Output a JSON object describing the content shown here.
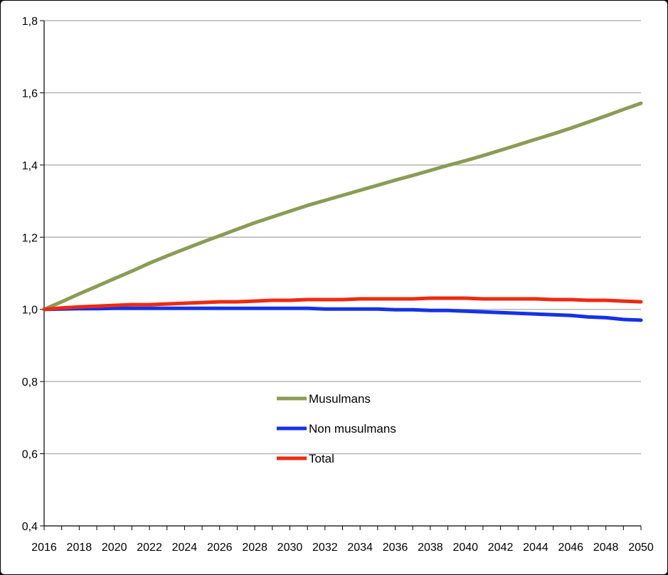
{
  "chart_data": {
    "type": "line",
    "title": "",
    "xlabel": "",
    "ylabel": "",
    "xlim": [
      2016,
      2050
    ],
    "ylim": [
      0.4,
      1.8
    ],
    "x_ticks": [
      2016,
      2018,
      2020,
      2022,
      2024,
      2026,
      2028,
      2030,
      2032,
      2034,
      2036,
      2038,
      2040,
      2042,
      2044,
      2046,
      2048,
      2050
    ],
    "x_tick_labels": [
      "2016",
      "2018",
      "2020",
      "2022",
      "2024",
      "2026",
      "2028",
      "2030",
      "2032",
      "2034",
      "2036",
      "2038",
      "2040",
      "2042",
      "2044",
      "2046",
      "2048",
      "2050"
    ],
    "y_ticks": [
      0.4,
      0.6,
      0.8,
      1.0,
      1.2,
      1.4,
      1.6,
      1.8
    ],
    "y_tick_labels": [
      "0,4",
      "0,6",
      "0,8",
      "1,0",
      "1,2",
      "1,4",
      "1,6",
      "1,8"
    ],
    "grid": "horizontal",
    "legend_position": "center",
    "x": [
      2016,
      2017,
      2018,
      2019,
      2020,
      2021,
      2022,
      2023,
      2024,
      2025,
      2026,
      2027,
      2028,
      2029,
      2030,
      2031,
      2032,
      2033,
      2034,
      2035,
      2036,
      2037,
      2038,
      2039,
      2040,
      2041,
      2042,
      2043,
      2044,
      2045,
      2046,
      2047,
      2048,
      2049,
      2050
    ],
    "series": [
      {
        "name": "Musulmans",
        "color": "#8a9c55",
        "values": [
          1.0,
          1.021,
          1.043,
          1.064,
          1.085,
          1.106,
          1.128,
          1.148,
          1.167,
          1.186,
          1.204,
          1.222,
          1.24,
          1.256,
          1.272,
          1.288,
          1.302,
          1.316,
          1.33,
          1.344,
          1.358,
          1.371,
          1.385,
          1.399,
          1.412,
          1.426,
          1.441,
          1.456,
          1.471,
          1.486,
          1.502,
          1.519,
          1.536,
          1.554,
          1.571
        ]
      },
      {
        "name": "Non musulmans",
        "color": "#1432e6",
        "values": [
          1.0,
          1.001,
          1.002,
          1.002,
          1.003,
          1.003,
          1.003,
          1.003,
          1.003,
          1.003,
          1.003,
          1.003,
          1.003,
          1.003,
          1.003,
          1.003,
          1.001,
          1.001,
          1.001,
          1.001,
          0.999,
          0.999,
          0.997,
          0.997,
          0.995,
          0.993,
          0.991,
          0.989,
          0.987,
          0.985,
          0.983,
          0.979,
          0.977,
          0.972,
          0.97
        ]
      },
      {
        "name": "Total",
        "color": "#ee2a12",
        "values": [
          1.0,
          1.004,
          1.007,
          1.009,
          1.011,
          1.013,
          1.013,
          1.015,
          1.017,
          1.019,
          1.021,
          1.021,
          1.023,
          1.025,
          1.025,
          1.027,
          1.027,
          1.027,
          1.029,
          1.029,
          1.029,
          1.029,
          1.031,
          1.031,
          1.031,
          1.029,
          1.029,
          1.029,
          1.029,
          1.027,
          1.027,
          1.025,
          1.025,
          1.023,
          1.021
        ]
      }
    ]
  }
}
